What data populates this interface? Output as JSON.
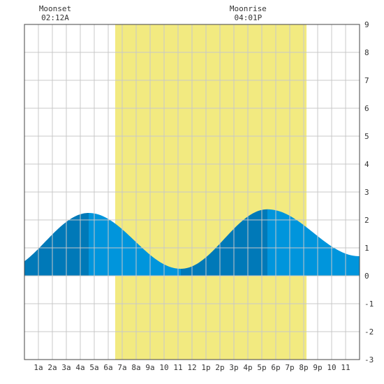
{
  "moon_events": [
    {
      "label": "Moonset",
      "time": "02:12A",
      "hour": 2.2
    },
    {
      "label": "Moonrise",
      "time": "04:01P",
      "hour": 16.0167
    }
  ],
  "colors": {
    "daylight": "#f2ea80",
    "tide_rising": "#0095dc",
    "tide_falling": "#0079b8",
    "grid": "#c8c8c8",
    "border": "#444444",
    "text": "#333333"
  },
  "chart_data": {
    "type": "area",
    "title": "",
    "xlabel": "",
    "ylabel": "",
    "xlim": [
      0,
      24
    ],
    "ylim": [
      -3,
      9
    ],
    "grid": true,
    "daylight": {
      "start": 6.5,
      "end": 20.2
    },
    "x_tick_labels": [
      "1a",
      "2a",
      "3a",
      "4a",
      "5a",
      "6a",
      "7a",
      "8a",
      "9a",
      "10",
      "11",
      "12",
      "1p",
      "2p",
      "3p",
      "4p",
      "5p",
      "6p",
      "7p",
      "8p",
      "9p",
      "10",
      "11"
    ],
    "y_tick_labels": [
      "9",
      "8",
      "7",
      "6",
      "5",
      "4",
      "3",
      "2",
      "1",
      "0",
      "-1",
      "-2",
      "-3"
    ],
    "tide_extremes": [
      {
        "hour": -1.6,
        "height": 0.2
      },
      {
        "hour": 4.6,
        "height": 2.25
      },
      {
        "hour": 11.2,
        "height": 0.25
      },
      {
        "hour": 17.4,
        "height": 2.38
      },
      {
        "hour": 24.0,
        "height": 0.7
      }
    ]
  }
}
